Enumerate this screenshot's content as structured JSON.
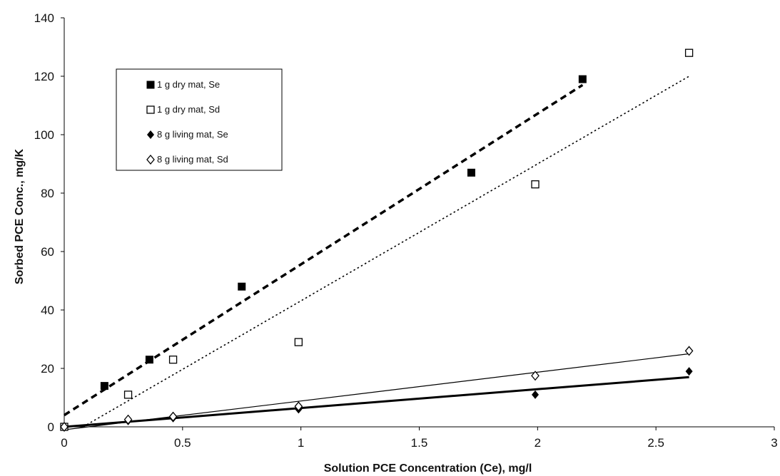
{
  "chart_data": {
    "type": "scatter",
    "xlabel": "Solution PCE Concentration (Ce), mg/l",
    "ylabel": "Sorbed PCE Conc.,  mg/K",
    "xlim": [
      0,
      3
    ],
    "ylim": [
      0,
      140
    ],
    "x_ticks": [
      "0",
      "0.5",
      "1",
      "1.5",
      "2",
      "2.5",
      "3"
    ],
    "y_ticks": [
      "0",
      "20",
      "40",
      "60",
      "80",
      "100",
      "120",
      "140"
    ],
    "grid": false,
    "legend_position": "upper-left",
    "series": [
      {
        "name": "1 g dry mat, Se",
        "marker": "filled-square",
        "color": "#000000",
        "points": [
          [
            0,
            0
          ],
          [
            0.17,
            14
          ],
          [
            0.36,
            23
          ],
          [
            0.75,
            48
          ],
          [
            1.72,
            87
          ],
          [
            2.19,
            119
          ]
        ],
        "trendline": {
          "style": "dashed-bold",
          "from": [
            0,
            4
          ],
          "to": [
            2.19,
            117
          ]
        }
      },
      {
        "name": "1 g dry mat, Sd",
        "marker": "open-square",
        "color": "#000000",
        "points": [
          [
            0,
            0
          ],
          [
            0.27,
            11
          ],
          [
            0.46,
            23
          ],
          [
            0.99,
            29
          ],
          [
            1.99,
            83
          ],
          [
            2.64,
            128
          ]
        ],
        "trendline": {
          "style": "dotted",
          "from": [
            0.08,
            0
          ],
          "to": [
            2.64,
            120
          ]
        }
      },
      {
        "name": "8 g living mat, Se",
        "marker": "filled-diamond",
        "color": "#000000",
        "points": [
          [
            0,
            0
          ],
          [
            0.27,
            2
          ],
          [
            0.46,
            3
          ],
          [
            0.99,
            6
          ],
          [
            1.99,
            11
          ],
          [
            2.64,
            19
          ]
        ],
        "trendline": {
          "style": "solid-bold",
          "from": [
            0,
            0
          ],
          "to": [
            2.64,
            17
          ]
        }
      },
      {
        "name": "8 g living mat, Sd",
        "marker": "open-diamond",
        "color": "#000000",
        "points": [
          [
            0,
            0
          ],
          [
            0.27,
            2.5
          ],
          [
            0.46,
            3.5
          ],
          [
            0.99,
            7
          ],
          [
            1.99,
            17.5
          ],
          [
            2.64,
            26
          ]
        ],
        "trendline": {
          "style": "solid-thin",
          "from": [
            0,
            -1
          ],
          "to": [
            2.64,
            25
          ]
        }
      }
    ]
  }
}
